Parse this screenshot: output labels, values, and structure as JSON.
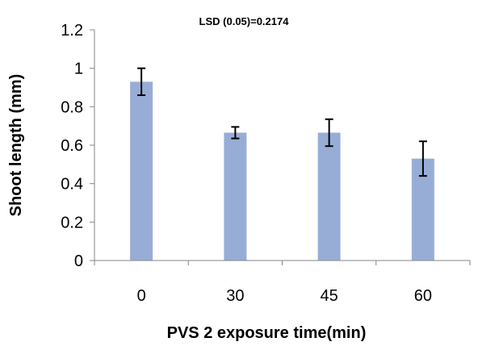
{
  "chart_data": {
    "type": "bar",
    "categories": [
      "0",
      "30",
      "45",
      "60"
    ],
    "values": [
      0.93,
      0.665,
      0.665,
      0.53
    ],
    "error_bars": [
      0.07,
      0.03,
      0.07,
      0.09
    ],
    "title": "",
    "annotation": "LSD (0.05)=0.2174",
    "xlabel": "PVS 2 exposure time(min)",
    "ylabel": "Shoot length (mm)",
    "ylim": [
      0,
      1.2
    ],
    "yticks": [
      "0",
      "0.2",
      "0.4",
      "0.6",
      "0.8",
      "1",
      "1.2"
    ],
    "grid": false,
    "legend": "none",
    "colors": {
      "bar": "#98ADD6",
      "axis": "#868686",
      "error_bar": "#000000"
    }
  }
}
